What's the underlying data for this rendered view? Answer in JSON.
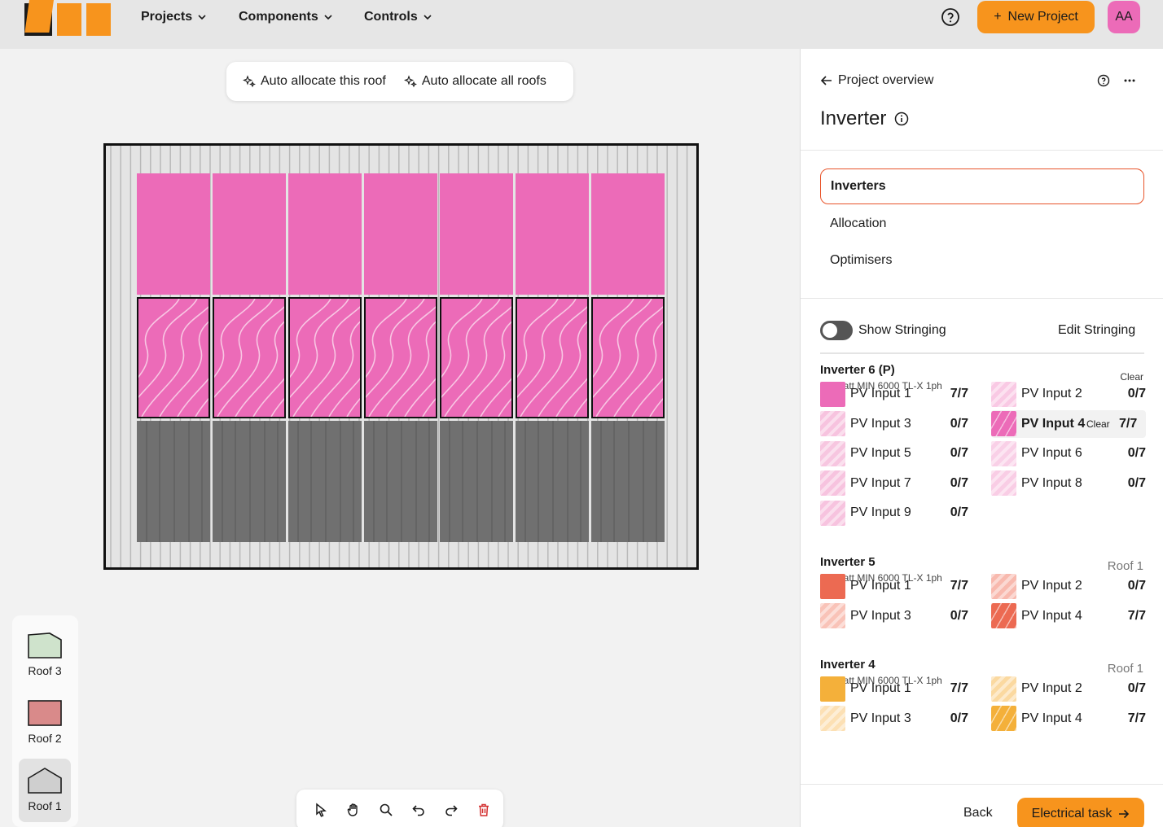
{
  "nav": {
    "projects": "Projects",
    "components": "Components",
    "controls": "Controls",
    "new_project": "New Project",
    "avatar": "AA"
  },
  "canvas": {
    "auto_this": "Auto allocate this roof",
    "auto_all": "Auto allocate all roofs"
  },
  "roofs": [
    "Roof 3",
    "Roof 2",
    "Roof 1"
  ],
  "panel": {
    "back": "Project overview",
    "title": "Inverter",
    "menu": [
      "Inverters",
      "Allocation",
      "Optimisers"
    ],
    "show_stringing": "Show Stringing",
    "edit_stringing": "Edit Stringing",
    "inverters": [
      {
        "name": "Inverter 6 (P)",
        "model": "Growatt MIN 6000 TL-X 1ph",
        "right": "Clear",
        "inputs": [
          {
            "label": "PV Input 1",
            "count": "7/7"
          },
          {
            "label": "PV Input 2",
            "count": "0/7"
          },
          {
            "label": "PV Input 3",
            "count": "0/7"
          },
          {
            "label": "PV Input 4",
            "count": "7/7",
            "clear": "Clear"
          },
          {
            "label": "PV Input 5",
            "count": "0/7"
          },
          {
            "label": "PV Input 6",
            "count": "0/7"
          },
          {
            "label": "PV Input 7",
            "count": "0/7"
          },
          {
            "label": "PV Input 8",
            "count": "0/7"
          },
          {
            "label": "PV Input 9",
            "count": "0/7"
          }
        ]
      },
      {
        "name": "Inverter 5",
        "model": "Growatt MIN 6000 TL-X 1ph",
        "right": "Roof 1",
        "inputs": [
          {
            "label": "PV Input 1",
            "count": "7/7"
          },
          {
            "label": "PV Input 2",
            "count": "0/7"
          },
          {
            "label": "PV Input 3",
            "count": "0/7"
          },
          {
            "label": "PV Input 4",
            "count": "7/7"
          }
        ]
      },
      {
        "name": "Inverter 4",
        "model": "Growatt MIN 6000 TL-X 1ph",
        "right": "Roof 1",
        "inputs": [
          {
            "label": "PV Input 1",
            "count": "7/7"
          },
          {
            "label": "PV Input 2",
            "count": "0/7"
          },
          {
            "label": "PV Input 3",
            "count": "0/7"
          },
          {
            "label": "PV Input 4",
            "count": "7/7"
          }
        ]
      }
    ],
    "back_btn": "Back",
    "next_btn": "Electrical task"
  },
  "colors": {
    "accent": "#f7941d",
    "pink": "#ec6bb8",
    "salmon": "#ec6a52",
    "amber": "#f4b03a",
    "active_border": "#e8542a"
  }
}
